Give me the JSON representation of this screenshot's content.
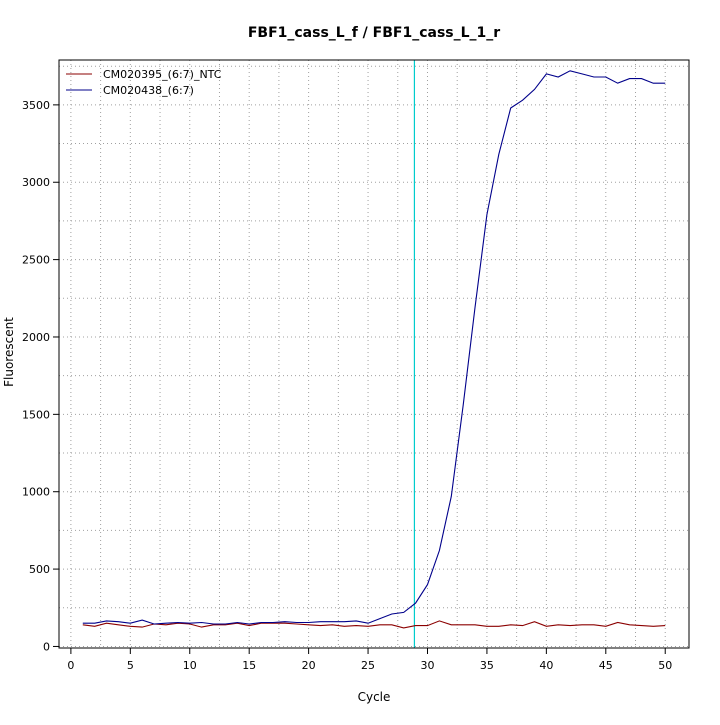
{
  "chart_data": {
    "type": "line",
    "title": "FBF1_cass_L_f / FBF1_cass_L_1_r",
    "xlabel": "Cycle",
    "ylabel": "Fluorescent",
    "xlim": [
      -1,
      52
    ],
    "ylim": [
      -10,
      3790
    ],
    "x_ticks": [
      0,
      5,
      10,
      15,
      20,
      25,
      30,
      35,
      40,
      45,
      50
    ],
    "y_ticks": [
      0,
      500,
      1000,
      1500,
      2000,
      2500,
      3000,
      3500
    ],
    "grid": true,
    "grid_style": "dotted",
    "legend_position": "top-left",
    "threshold_cycle": 28.9,
    "threshold_color": "#00cccc",
    "x": [
      1,
      2,
      3,
      4,
      5,
      6,
      7,
      8,
      9,
      10,
      11,
      12,
      13,
      14,
      15,
      16,
      17,
      18,
      19,
      20,
      21,
      22,
      23,
      24,
      25,
      26,
      27,
      28,
      29,
      30,
      31,
      32,
      33,
      34,
      35,
      36,
      37,
      38,
      39,
      40,
      41,
      42,
      43,
      44,
      45,
      46,
      47,
      48,
      49,
      50
    ],
    "series": [
      {
        "name": "CM020395_(6:7)_NTC",
        "color": "#8b0000",
        "values": [
          140,
          130,
          150,
          140,
          130,
          125,
          145,
          140,
          150,
          145,
          125,
          140,
          140,
          150,
          135,
          150,
          150,
          150,
          145,
          140,
          135,
          140,
          130,
          135,
          130,
          140,
          140,
          120,
          135,
          135,
          165,
          140,
          140,
          140,
          130,
          130,
          140,
          135,
          160,
          130,
          140,
          135,
          140,
          140,
          130,
          155,
          140,
          135,
          130,
          135
        ]
      },
      {
        "name": "CM020438_(6:7)",
        "color": "#00008b",
        "values": [
          150,
          150,
          165,
          160,
          150,
          170,
          145,
          150,
          155,
          150,
          155,
          145,
          145,
          155,
          145,
          155,
          155,
          160,
          155,
          155,
          160,
          160,
          160,
          165,
          150,
          180,
          210,
          220,
          280,
          400,
          620,
          970,
          1560,
          2190,
          2790,
          3180,
          3480,
          3530,
          3600,
          3700,
          3680,
          3720,
          3700,
          3680,
          3680,
          3640,
          3670,
          3670,
          3640,
          3640
        ]
      }
    ]
  }
}
